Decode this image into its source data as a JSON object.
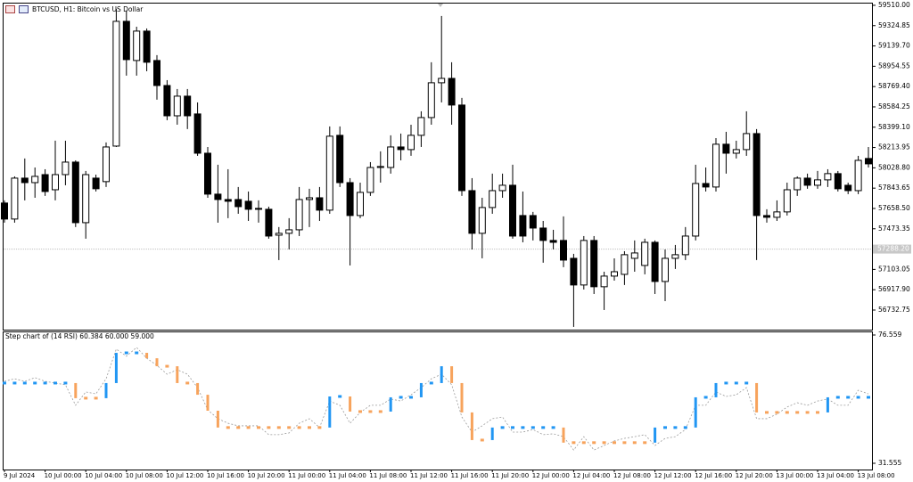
{
  "chart_data": [
    {
      "type": "candlestick",
      "title": "BTCUSD, H1: Bitcoin vs US Dollar",
      "categories": [
        "9 Jul 2024",
        null,
        null,
        null,
        "10 Jul 00:00",
        null,
        null,
        null,
        "10 Jul 04:00",
        null,
        null,
        null,
        "10 Jul 08:00",
        null,
        null,
        null,
        "10 Jul 12:00",
        null,
        null,
        null,
        "10 Jul 16:00",
        null,
        null,
        null,
        "10 Jul 20:00",
        null,
        null,
        null,
        "11 Jul 00:00",
        null,
        null,
        null,
        "11 Jul 04:00",
        null,
        null,
        null,
        "11 Jul 08:00",
        null,
        null,
        null,
        "11 Jul 12:00",
        null,
        null,
        null,
        "11 Jul 16:00",
        null,
        null,
        null,
        "11 Jul 20:00",
        null,
        null,
        null,
        "12 Jul 00:00",
        null,
        null,
        null,
        "12 Jul 04:00",
        null,
        null,
        null,
        "12 Jul 08:00",
        null,
        null,
        null,
        "12 Jul 12:00",
        null,
        null,
        null,
        "12 Jul 16:00",
        null,
        null,
        null,
        "12 Jul 20:00",
        null,
        null,
        null,
        "13 Jul 00:00",
        null,
        null,
        null,
        "13 Jul 04:00",
        null,
        null,
        null,
        "13 Jul 08:00",
        null
      ],
      "open": [
        57708,
        57562,
        57935,
        57894,
        57967,
        57829,
        57967,
        58081,
        57529,
        57935,
        57903,
        58227,
        59364,
        59007,
        59275,
        59007,
        58779,
        58503,
        58682,
        58520,
        58162,
        57789,
        57740,
        57740,
        57724,
        57659,
        57651,
        57415,
        57432,
        57464,
        57740,
        57756,
        57643,
        58325,
        57894,
        57594,
        57805,
        58032,
        58032,
        58219,
        58195,
        58325,
        58487,
        58804,
        58844,
        58601,
        57821,
        57432,
        57667,
        57821,
        57870,
        57594,
        57594,
        57480,
        57367,
        57367,
        57204,
        56961,
        57367,
        56945,
        57042,
        57058,
        57204,
        57139,
        57350,
        56993,
        57204,
        57237,
        57407,
        57886,
        57854,
        58244,
        58162,
        58195,
        58341,
        57594,
        57578,
        57627,
        57829,
        57935,
        57870,
        57919,
        57976,
        57870,
        57821,
        58114
      ],
      "high": [
        57732,
        57951,
        58114,
        58032,
        58016,
        58276,
        58276,
        58097,
        58000,
        57967,
        58260,
        59478,
        59462,
        59315,
        59299,
        59056,
        58828,
        58747,
        58747,
        58625,
        58219,
        58057,
        58016,
        57854,
        57813,
        57732,
        57675,
        57489,
        57570,
        57854,
        57838,
        57854,
        58406,
        58406,
        57935,
        57894,
        58081,
        58179,
        58325,
        58341,
        58422,
        58544,
        58991,
        59413,
        58991,
        58666,
        57935,
        57756,
        57976,
        57976,
        58057,
        57813,
        57627,
        57545,
        57464,
        57586,
        57245,
        57407,
        57407,
        57082,
        57204,
        57269,
        57367,
        57383,
        57367,
        57285,
        57326,
        57489,
        58057,
        58032,
        58300,
        58357,
        58276,
        58544,
        58382,
        57651,
        57732,
        57894,
        57951,
        57976,
        58000,
        58016,
        58000,
        57894,
        58138,
        58219
      ],
      "low": [
        57529,
        57529,
        57732,
        57756,
        57773,
        57732,
        57870,
        57489,
        57383,
        57813,
        57854,
        58219,
        58869,
        58869,
        58909,
        58650,
        58463,
        58422,
        58382,
        58138,
        57756,
        57529,
        57570,
        57610,
        57545,
        57529,
        57383,
        57188,
        57285,
        57407,
        57489,
        57545,
        57610,
        57854,
        57139,
        57570,
        57773,
        57894,
        57976,
        58097,
        58138,
        58219,
        58422,
        58625,
        58422,
        57773,
        57285,
        57204,
        57610,
        57756,
        57383,
        57350,
        57367,
        57164,
        57285,
        57123,
        56579,
        56920,
        56879,
        56733,
        57001,
        56961,
        57082,
        57058,
        56879,
        56814,
        57107,
        57188,
        57367,
        57813,
        57813,
        57976,
        58114,
        58138,
        57188,
        57529,
        57545,
        57594,
        57773,
        57838,
        57838,
        57854,
        57813,
        57789,
        57789,
        58032
      ],
      "close": [
        57562,
        57935,
        57894,
        57951,
        57813,
        57967,
        58081,
        57529,
        57967,
        57838,
        58219,
        59364,
        59015,
        59275,
        58991,
        58779,
        58503,
        58682,
        58503,
        58162,
        57789,
        57740,
        57724,
        57675,
        57651,
        57651,
        57407,
        57432,
        57464,
        57740,
        57756,
        57643,
        58317,
        57894,
        57594,
        57805,
        58032,
        58041,
        58219,
        58195,
        58325,
        58487,
        58804,
        58844,
        58601,
        57821,
        57432,
        57667,
        57821,
        57870,
        57407,
        57407,
        57480,
        57367,
        57350,
        57188,
        56961,
        57367,
        56945,
        57042,
        57082,
        57237,
        57253,
        57350,
        56993,
        57204,
        57237,
        57407,
        57886,
        57854,
        58244,
        58162,
        58195,
        58341,
        57594,
        57578,
        57627,
        57829,
        57935,
        57870,
        57919,
        57976,
        57838,
        57821,
        58097,
        58065
      ],
      "up_color": "#ffffff",
      "down_color": "#000000",
      "ylim": [
        56554,
        59534
      ],
      "yticks": [
        {
          "value": 59510,
          "label": "59510.00"
        },
        {
          "value": 59324.85,
          "label": "59324.85"
        },
        {
          "value": 59139.7,
          "label": "59139.70"
        },
        {
          "value": 58954.55,
          "label": "58954.55"
        },
        {
          "value": 58769.4,
          "label": "58769.40"
        },
        {
          "value": 58584.25,
          "label": "58584.25"
        },
        {
          "value": 58399.1,
          "label": "58399.10"
        },
        {
          "value": 58213.95,
          "label": "58213.95"
        },
        {
          "value": 58028.8,
          "label": "58028.80"
        },
        {
          "value": 57843.65,
          "label": "57843.65"
        },
        {
          "value": 57658.5,
          "label": "57658.50"
        },
        {
          "value": 57473.35,
          "label": "57473.35"
        },
        {
          "value": 57103.05,
          "label": "57103.05"
        },
        {
          "value": 56917.9,
          "label": "56917.90"
        },
        {
          "value": 56732.75,
          "label": "56732.75"
        }
      ],
      "price_line": {
        "value": 57288.2,
        "label": "57288.20"
      }
    },
    {
      "type": "step",
      "title": "Step chart of (14 RSI) 60.384 60.000 59.000",
      "values": [
        59.7,
        59.7,
        59.7,
        59.7,
        59.7,
        59.7,
        59.7,
        54.4,
        54.4,
        54.4,
        59.7,
        70.3,
        70.3,
        70.3,
        68.4,
        65.6,
        65.6,
        59.7,
        59.7,
        55.6,
        50.0,
        44.1,
        44.1,
        44.1,
        44.1,
        44.1,
        44.1,
        44.1,
        44.1,
        44.1,
        44.1,
        44.1,
        55.0,
        55.0,
        49.7,
        49.7,
        49.7,
        49.7,
        54.7,
        54.7,
        54.7,
        59.7,
        59.7,
        65.6,
        59.7,
        49.4,
        39.7,
        39.7,
        44.1,
        44.1,
        44.1,
        44.1,
        44.1,
        44.1,
        44.1,
        38.8,
        38.8,
        38.8,
        38.8,
        38.8,
        38.8,
        38.8,
        38.8,
        38.8,
        44.1,
        44.1,
        44.1,
        44.1,
        54.7,
        54.7,
        59.7,
        59.7,
        59.7,
        59.7,
        49.4,
        49.4,
        49.4,
        49.4,
        49.4,
        49.4,
        49.4,
        54.7,
        54.7,
        54.7,
        54.7,
        54.7
      ],
      "up_color": "#2196f3",
      "down_color": "#f7a35c",
      "line": {
        "color": "#9a9a9a",
        "values": [
          60.3,
          61.2,
          60.3,
          61.6,
          60.3,
          59.7,
          59.1,
          51.9,
          56.6,
          55.9,
          61.2,
          71.6,
          69.1,
          72.2,
          68.4,
          65.9,
          62.8,
          64.4,
          62.8,
          58.1,
          50.3,
          47.2,
          45.6,
          44.7,
          44.7,
          44.7,
          41.6,
          41.6,
          42.2,
          45.6,
          47.2,
          44.1,
          53.4,
          51.9,
          45.6,
          49.4,
          51.9,
          51.9,
          54.1,
          53.4,
          55.6,
          58.1,
          61.2,
          62.8,
          59.1,
          47.8,
          42.5,
          44.7,
          47.2,
          47.8,
          42.5,
          42.5,
          43.4,
          41.6,
          41.9,
          40.9,
          36.2,
          40.9,
          36.2,
          37.8,
          39.4,
          40.3,
          40.9,
          41.6,
          37.8,
          40.3,
          40.9,
          43.4,
          51.9,
          51.9,
          56.6,
          55.0,
          55.6,
          58.1,
          47.2,
          47.2,
          48.8,
          51.3,
          52.8,
          51.9,
          53.4,
          54.1,
          51.9,
          51.9,
          57.2,
          55.9
        ]
      },
      "ylim": [
        29.37,
        77.81
      ],
      "yticks": [
        76.559,
        31.555
      ]
    }
  ]
}
